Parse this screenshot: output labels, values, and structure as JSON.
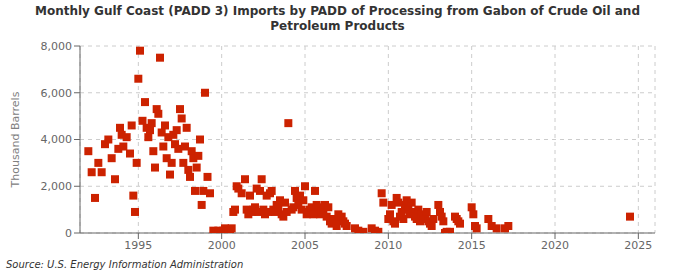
{
  "chart_data": {
    "type": "scatter",
    "title": "Monthly Gulf Coast (PADD 3) Imports by PADD of Processing from Gabon of Crude Oil and\nPetroleum Products",
    "ylabel": "Thousand Barrels",
    "annotations": [
      "Source: U.S. Energy Information Administration"
    ],
    "color": "#cc2200",
    "marker": "square",
    "grid": true,
    "xlim": [
      1991.5,
      2026
    ],
    "ylim": [
      0,
      8000
    ],
    "xticks": [
      1995,
      2000,
      2005,
      2010,
      2015,
      2020,
      2025
    ],
    "yticks": [
      0,
      {
        "value": 2000,
        "label": "2,000"
      },
      {
        "value": 4000,
        "label": "4,000"
      },
      {
        "value": 6000,
        "label": "6,000"
      },
      {
        "value": 8000,
        "label": "8,000"
      }
    ],
    "x": [
      1992.0,
      1992.2,
      1992.4,
      1992.6,
      1992.8,
      1993.0,
      1993.2,
      1993.4,
      1993.6,
      1993.8,
      1993.9,
      1994.0,
      1994.1,
      1994.3,
      1994.5,
      1994.6,
      1994.7,
      1994.8,
      1994.9,
      1995.0,
      1995.1,
      1995.25,
      1995.4,
      1995.5,
      1995.6,
      1995.7,
      1995.8,
      1995.9,
      1996.0,
      1996.1,
      1996.2,
      1996.3,
      1996.4,
      1996.5,
      1996.6,
      1996.7,
      1996.8,
      1996.9,
      1997.0,
      1997.1,
      1997.2,
      1997.3,
      1997.4,
      1997.5,
      1997.6,
      1997.7,
      1997.8,
      1997.9,
      1998.0,
      1998.1,
      1998.2,
      1998.3,
      1998.4,
      1998.5,
      1998.6,
      1998.7,
      1998.8,
      1998.9,
      1999.0,
      1999.15,
      1999.3,
      1999.5,
      1999.6,
      1999.7,
      1999.8,
      1999.9,
      2000.0,
      2000.1,
      2000.2,
      2000.3,
      2000.4,
      2000.5,
      2000.6,
      2000.7,
      2000.8,
      2000.9,
      2001.0,
      2001.2,
      2001.4,
      2001.5,
      2001.6,
      2001.7,
      2001.8,
      2001.9,
      2002.0,
      2002.1,
      2002.2,
      2002.3,
      2002.4,
      2002.5,
      2002.6,
      2002.7,
      2002.8,
      2002.9,
      2003.0,
      2003.1,
      2003.2,
      2003.3,
      2003.4,
      2003.5,
      2003.6,
      2003.7,
      2003.8,
      2003.9,
      2004.0,
      2004.2,
      2004.3,
      2004.4,
      2004.5,
      2004.6,
      2004.7,
      2004.8,
      2004.9,
      2005.0,
      2005.1,
      2005.2,
      2005.3,
      2005.4,
      2005.5,
      2005.6,
      2005.7,
      2005.8,
      2005.9,
      2006.0,
      2006.1,
      2006.2,
      2006.3,
      2006.4,
      2006.5,
      2006.6,
      2006.7,
      2006.8,
      2006.9,
      2007.0,
      2007.1,
      2007.2,
      2007.3,
      2007.4,
      2007.5,
      2008.0,
      2008.2,
      2008.5,
      2009.0,
      2009.2,
      2009.4,
      2009.6,
      2009.7,
      2010.0,
      2010.1,
      2010.2,
      2010.3,
      2010.4,
      2010.5,
      2010.6,
      2010.7,
      2010.8,
      2010.9,
      2011.0,
      2011.1,
      2011.2,
      2011.3,
      2011.4,
      2011.5,
      2011.6,
      2011.7,
      2011.8,
      2011.9,
      2012.0,
      2012.1,
      2012.2,
      2012.3,
      2012.4,
      2012.5,
      2012.6,
      2012.7,
      2013.0,
      2013.1,
      2013.2,
      2013.3,
      2013.4,
      2013.5,
      2013.6,
      2013.7,
      2014.0,
      2014.1,
      2014.2,
      2014.3,
      2015.0,
      2015.1,
      2015.2,
      2015.3,
      2016.0,
      2016.2,
      2016.5,
      2017.0,
      2017.2,
      2024.5
    ],
    "values": [
      3500,
      2600,
      1500,
      3000,
      2600,
      3800,
      4000,
      3200,
      2300,
      3600,
      4500,
      4200,
      3700,
      4100,
      3400,
      4600,
      1600,
      900,
      3000,
      6600,
      7800,
      4800,
      5600,
      4500,
      4100,
      4400,
      4700,
      3500,
      2800,
      5300,
      5100,
      7500,
      4300,
      3700,
      4600,
      3200,
      4100,
      2500,
      3000,
      4200,
      3800,
      4400,
      3600,
      5300,
      4900,
      3000,
      3700,
      4500,
      2700,
      2400,
      3500,
      3200,
      1800,
      2800,
      3300,
      4000,
      1200,
      1800,
      6000,
      2400,
      1700,
      100,
      50,
      80,
      100,
      50,
      50,
      100,
      200,
      50,
      80,
      100,
      200,
      900,
      1000,
      2000,
      1900,
      1700,
      2300,
      1000,
      800,
      1600,
      900,
      1000,
      1100,
      1900,
      900,
      1800,
      2300,
      1000,
      800,
      1600,
      900,
      1700,
      1800,
      1000,
      900,
      1200,
      1100,
      1400,
      800,
      700,
      1300,
      900,
      4700,
      1000,
      1100,
      1800,
      1500,
      1200,
      1600,
      1000,
      1400,
      2000,
      800,
      900,
      1000,
      1100,
      800,
      1800,
      1200,
      1100,
      800,
      900,
      1000,
      1200,
      700,
      1100,
      500,
      400,
      600,
      500,
      300,
      800,
      600,
      700,
      500,
      400,
      300,
      200,
      100,
      50,
      200,
      100,
      50,
      1700,
      1300,
      600,
      800,
      1200,
      500,
      400,
      1500,
      1300,
      700,
      900,
      600,
      1200,
      1400,
      1000,
      800,
      1300,
      900,
      700,
      600,
      1000,
      500,
      800,
      600,
      700,
      900,
      500,
      400,
      300,
      600,
      1200,
      900,
      700,
      500,
      0,
      50,
      0,
      50,
      700,
      600,
      500,
      400,
      1100,
      800,
      300,
      200,
      600,
      300,
      200,
      200,
      300,
      700
    ]
  }
}
